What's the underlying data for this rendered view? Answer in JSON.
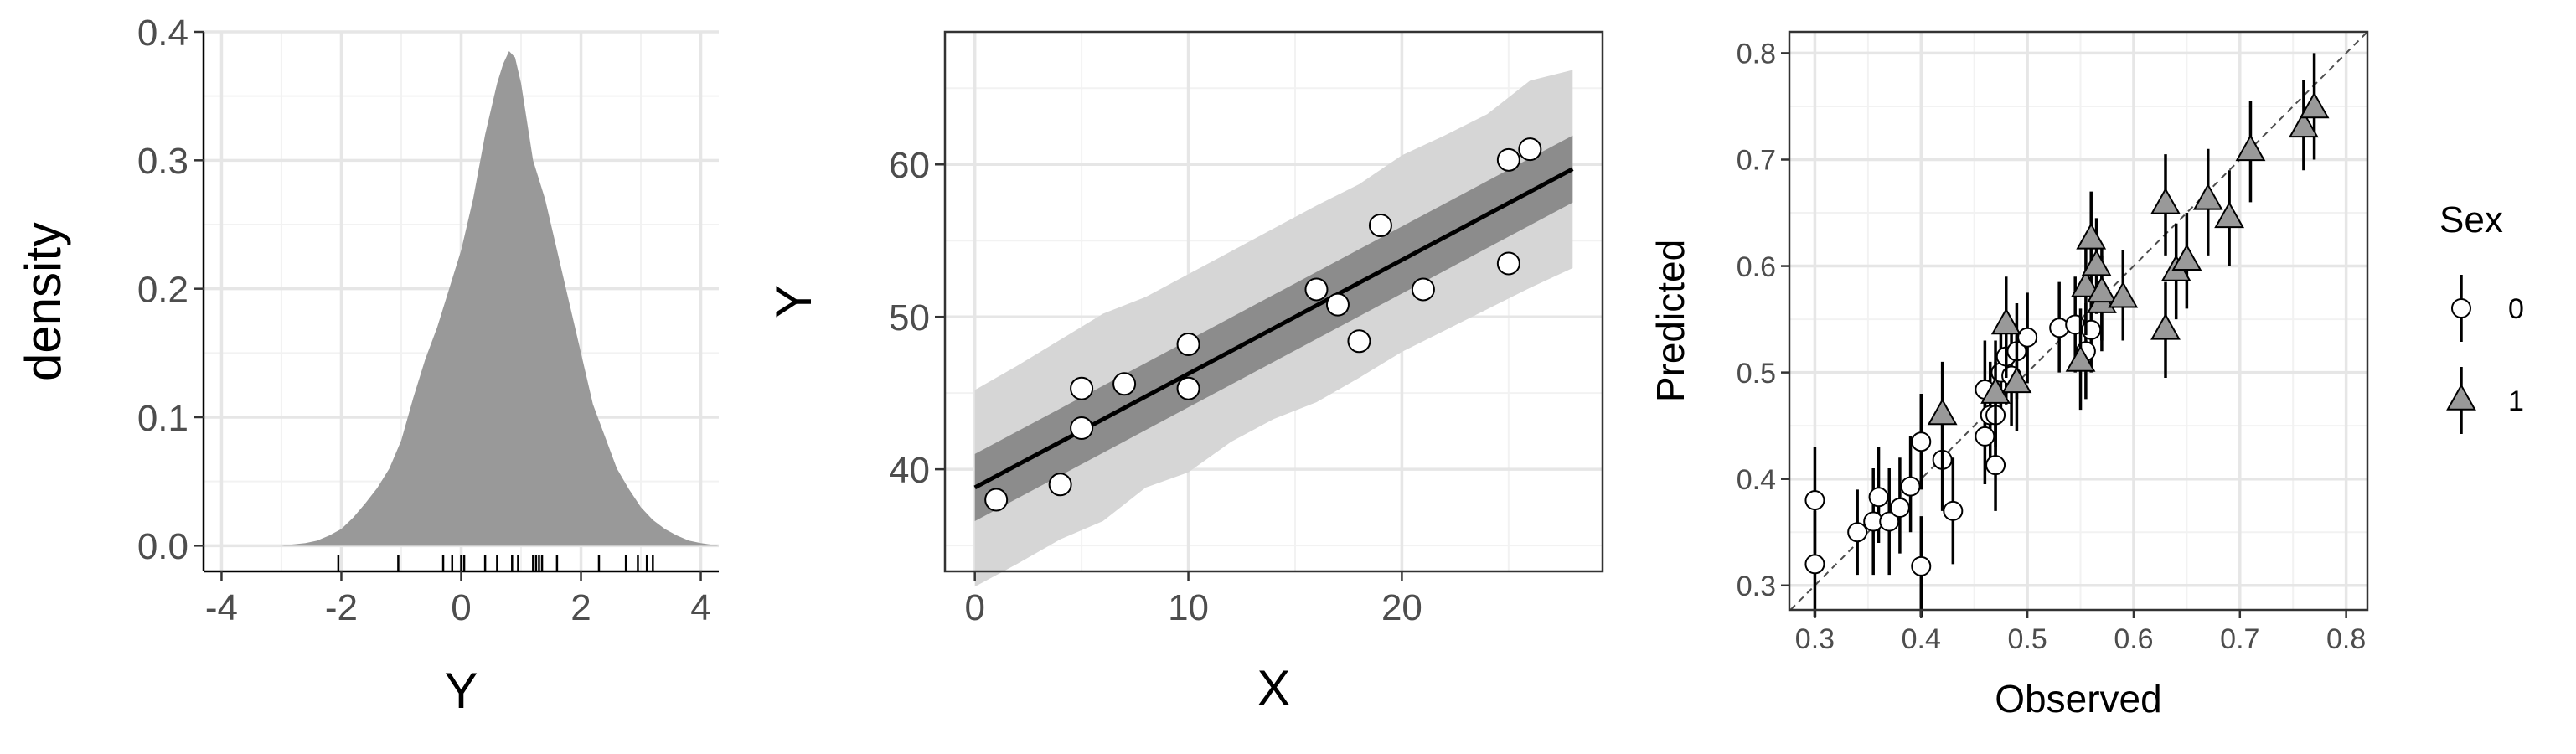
{
  "chart_data": [
    {
      "type": "area",
      "xlabel": "Y",
      "ylabel": "density",
      "xlim": [
        -4.3,
        4.3
      ],
      "ylim": [
        -0.02,
        0.4
      ],
      "x_ticks": [
        -4,
        -2,
        0,
        2,
        4
      ],
      "y_ticks": [
        0.0,
        0.1,
        0.2,
        0.3,
        0.4
      ],
      "x_tick_labels": [
        "-4",
        "-2",
        "0",
        "2",
        "4"
      ],
      "y_tick_labels": [
        "0.0",
        "0.1",
        "0.2",
        "0.3",
        "0.4"
      ],
      "grid": true,
      "colors": {
        "fill": "#999999",
        "grid": "#ebebeb",
        "panel_border": "#333333"
      },
      "density": {
        "x": [
          -3.0,
          -2.8,
          -2.6,
          -2.4,
          -2.2,
          -2.0,
          -1.8,
          -1.6,
          -1.4,
          -1.2,
          -1.0,
          -0.8,
          -0.6,
          -0.4,
          -0.2,
          0.0,
          0.2,
          0.4,
          0.6,
          0.7,
          0.8,
          0.9,
          1.0,
          1.1,
          1.2,
          1.4,
          1.6,
          1.8,
          2.0,
          2.2,
          2.4,
          2.6,
          2.8,
          3.0,
          3.2,
          3.4,
          3.6,
          3.8,
          4.0,
          4.3
        ],
        "y": [
          0.0,
          0.001,
          0.002,
          0.004,
          0.008,
          0.013,
          0.022,
          0.033,
          0.045,
          0.06,
          0.082,
          0.115,
          0.145,
          0.17,
          0.2,
          0.23,
          0.27,
          0.32,
          0.36,
          0.375,
          0.385,
          0.38,
          0.36,
          0.33,
          0.3,
          0.27,
          0.23,
          0.19,
          0.15,
          0.11,
          0.085,
          0.06,
          0.044,
          0.03,
          0.02,
          0.013,
          0.008,
          0.004,
          0.002,
          0.0
        ]
      },
      "rug": [
        -2.05,
        -1.05,
        -0.3,
        -0.15,
        0.0,
        0.05,
        0.4,
        0.6,
        0.85,
        0.95,
        1.2,
        1.25,
        1.3,
        1.35,
        1.6,
        2.3,
        2.75,
        2.95,
        3.1,
        3.2
      ]
    },
    {
      "type": "scatter",
      "xlabel": "X",
      "ylabel": "Y",
      "xlim": [
        -1.4,
        29.4
      ],
      "ylim": [
        33.3,
        68.7
      ],
      "x_ticks": [
        0,
        10,
        20
      ],
      "y_ticks": [
        40,
        50,
        60
      ],
      "x_tick_labels": [
        "0",
        "10",
        "20"
      ],
      "y_tick_labels": [
        "40",
        "50",
        "60"
      ],
      "grid": true,
      "colors": {
        "outer_band": "#d6d6d6",
        "inner_band": "#8c8c8c",
        "line": "#000000",
        "point_fill": "#ffffff",
        "point_stroke": "#000000"
      },
      "points": {
        "x": [
          1,
          4,
          5,
          5,
          7,
          10,
          10,
          16,
          17,
          18,
          19,
          21,
          25,
          25,
          26
        ],
        "y": [
          38,
          39,
          45.3,
          42.7,
          45.6,
          48.2,
          45.3,
          51.8,
          50.8,
          48.4,
          56,
          51.8,
          60.3,
          53.5,
          61
        ]
      },
      "fit": {
        "x": [
          0,
          28
        ],
        "y": [
          38.8,
          59.7
        ]
      },
      "inner_band": {
        "x": [
          0,
          28
        ],
        "lower": [
          36.6,
          57.5
        ],
        "upper": [
          41.0,
          61.9
        ]
      },
      "outer_band": {
        "x": [
          0,
          2,
          4,
          6,
          8,
          10,
          12,
          14,
          16,
          18,
          20,
          22,
          24,
          26,
          28
        ],
        "lower": [
          32.3,
          33.8,
          35.4,
          36.6,
          38.8,
          39.8,
          41.8,
          43.3,
          44.4,
          46.0,
          47.7,
          49.1,
          50.5,
          51.9,
          53.2
        ],
        "upper": [
          45.2,
          46.8,
          48.5,
          50.2,
          51.3,
          52.8,
          54.3,
          55.8,
          57.3,
          58.7,
          60.6,
          61.9,
          63.3,
          65.5,
          66.2
        ]
      }
    },
    {
      "type": "scatter",
      "xlabel": "Observed",
      "ylabel": "Predicted",
      "xlim": [
        0.276,
        0.82
      ],
      "ylim": [
        0.277,
        0.82
      ],
      "x_ticks": [
        0.3,
        0.4,
        0.5,
        0.6,
        0.7,
        0.8
      ],
      "y_ticks": [
        0.3,
        0.4,
        0.5,
        0.6,
        0.7,
        0.8
      ],
      "x_tick_labels": [
        "0.3",
        "0.4",
        "0.5",
        "0.6",
        "0.7",
        "0.8"
      ],
      "y_tick_labels": [
        "0.3",
        "0.4",
        "0.5",
        "0.6",
        "0.7",
        "0.8"
      ],
      "grid": true,
      "reference_line": "y = x (dashed)",
      "legend": {
        "title": "Sex",
        "position": "right",
        "labels": [
          "0",
          "1"
        ]
      },
      "colors": {
        "sex0_fill": "#ffffff",
        "sex1_fill": "#999999",
        "stroke": "#000000",
        "reference_line": "#4d4d4d"
      },
      "series": [
        {
          "name": "0",
          "shape": "circle",
          "x": [
            0.3,
            0.3,
            0.34,
            0.355,
            0.36,
            0.37,
            0.38,
            0.39,
            0.4,
            0.4,
            0.42,
            0.43,
            0.46,
            0.46,
            0.465,
            0.47,
            0.47,
            0.475,
            0.48,
            0.485,
            0.49,
            0.5,
            0.53,
            0.545,
            0.555,
            0.56
          ],
          "y": [
            0.38,
            0.32,
            0.35,
            0.36,
            0.383,
            0.36,
            0.373,
            0.393,
            0.435,
            0.318,
            0.418,
            0.37,
            0.484,
            0.44,
            0.46,
            0.413,
            0.46,
            0.5,
            0.515,
            0.497,
            0.52,
            0.533,
            0.542,
            0.545,
            0.52,
            0.54
          ],
          "lower": [
            0.33,
            0.27,
            0.31,
            0.31,
            0.34,
            0.31,
            0.33,
            0.35,
            0.39,
            0.27,
            0.37,
            0.32,
            0.44,
            0.395,
            0.41,
            0.37,
            0.41,
            0.455,
            0.47,
            0.45,
            0.475,
            0.49,
            0.5,
            0.5,
            0.475,
            0.5
          ],
          "upper": [
            0.43,
            0.37,
            0.39,
            0.41,
            0.43,
            0.41,
            0.42,
            0.44,
            0.48,
            0.365,
            0.465,
            0.42,
            0.53,
            0.49,
            0.51,
            0.46,
            0.51,
            0.545,
            0.56,
            0.545,
            0.565,
            0.575,
            0.585,
            0.59,
            0.565,
            0.585
          ]
        },
        {
          "name": "1",
          "shape": "triangle",
          "x": [
            0.42,
            0.47,
            0.48,
            0.49,
            0.55,
            0.555,
            0.56,
            0.565,
            0.57,
            0.57,
            0.59,
            0.63,
            0.63,
            0.64,
            0.65,
            0.67,
            0.69,
            0.71,
            0.76,
            0.77
          ],
          "y": [
            0.46,
            0.48,
            0.545,
            0.49,
            0.51,
            0.58,
            0.625,
            0.6,
            0.565,
            0.575,
            0.57,
            0.54,
            0.658,
            0.595,
            0.605,
            0.662,
            0.645,
            0.708,
            0.73,
            0.748
          ],
          "lower": [
            0.41,
            0.43,
            0.495,
            0.445,
            0.465,
            0.535,
            0.58,
            0.555,
            0.52,
            0.53,
            0.53,
            0.495,
            0.61,
            0.55,
            0.56,
            0.61,
            0.6,
            0.66,
            0.69,
            0.7
          ],
          "upper": [
            0.51,
            0.53,
            0.59,
            0.535,
            0.56,
            0.625,
            0.67,
            0.645,
            0.61,
            0.62,
            0.615,
            0.585,
            0.705,
            0.64,
            0.65,
            0.71,
            0.69,
            0.755,
            0.775,
            0.8
          ]
        }
      ]
    }
  ]
}
